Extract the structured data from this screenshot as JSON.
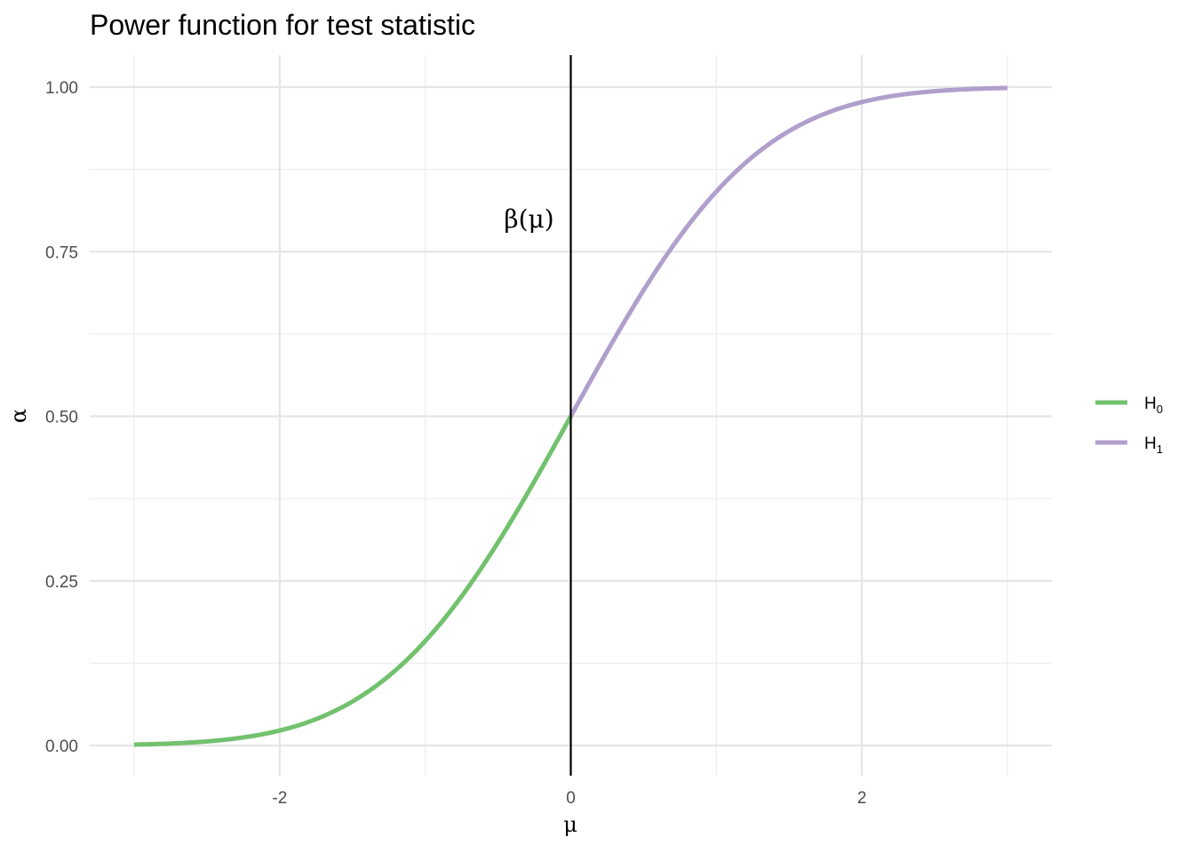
{
  "chart_data": {
    "type": "line",
    "title": "Power function for test statistic",
    "xlabel": "μ",
    "ylabel": "α",
    "xlim": [
      -3,
      3
    ],
    "ylim": [
      0,
      1
    ],
    "x_ticks": [
      -2,
      0,
      2
    ],
    "x_tick_labels": [
      "-2",
      "0",
      "2"
    ],
    "y_ticks": [
      0,
      0.25,
      0.5,
      0.75,
      1
    ],
    "y_tick_labels": [
      "0.00",
      "0.25",
      "0.50",
      "0.75",
      "1.00"
    ],
    "grid": true,
    "legend_position": "right",
    "vline_x": 0,
    "annotation": {
      "text": "β(μ)",
      "x": -0.25,
      "y": 0.8
    },
    "series": [
      {
        "name": "H0",
        "name_base": "H",
        "name_sub": "0",
        "color": "#72c16e",
        "x": [
          -3,
          -2.75,
          -2.5,
          -2.25,
          -2,
          -1.75,
          -1.5,
          -1.25,
          -1,
          -0.75,
          -0.5,
          -0.25,
          0
        ],
        "y": [
          0.0013,
          0.003,
          0.0062,
          0.0122,
          0.0228,
          0.0401,
          0.0668,
          0.1056,
          0.1587,
          0.2266,
          0.3085,
          0.4013,
          0.5
        ]
      },
      {
        "name": "H1",
        "name_base": "H",
        "name_sub": "1",
        "color": "#b09fcc",
        "x": [
          0,
          0.25,
          0.5,
          0.75,
          1,
          1.25,
          1.5,
          1.75,
          2,
          2.25,
          2.5,
          2.75,
          3
        ],
        "y": [
          0.5,
          0.5987,
          0.6915,
          0.7734,
          0.8413,
          0.8944,
          0.9332,
          0.9599,
          0.9772,
          0.9878,
          0.9938,
          0.997,
          0.9987
        ]
      }
    ]
  }
}
